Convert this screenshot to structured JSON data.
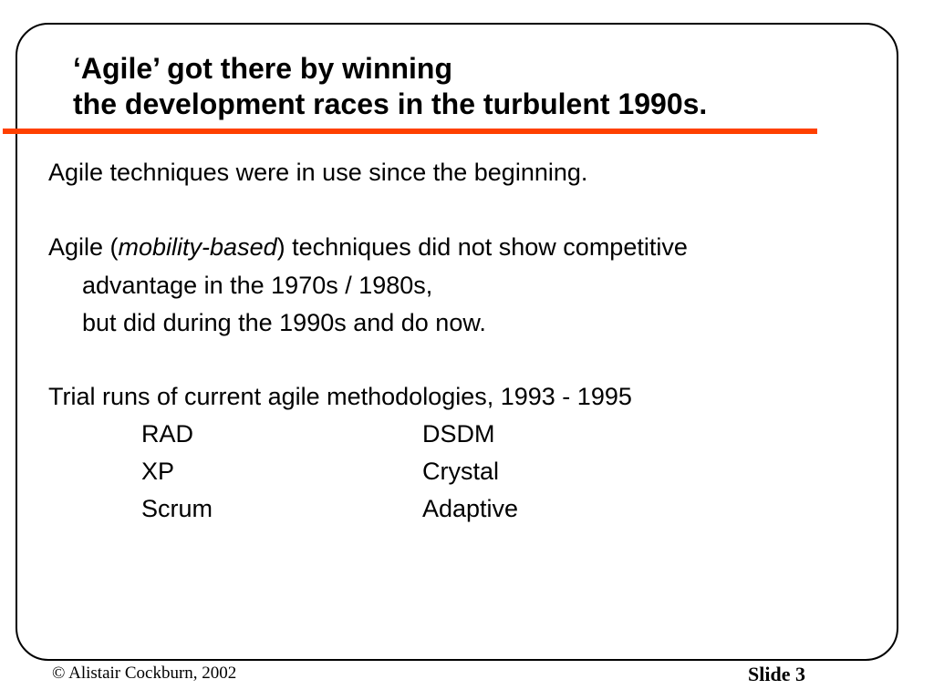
{
  "slide": {
    "title_line1": "‘Agile’ got there by winning",
    "title_line2": "the development races in the turbulent 1990s.",
    "colors": {
      "accent_line": "#ff4000",
      "frame": "#000000",
      "text": "#000000"
    },
    "body": {
      "para1": "Agile techniques were in use since the beginning.",
      "para2_prefix": "Agile (",
      "para2_italic": "mobility-based",
      "para2_suffix": ") techniques did not show competitive",
      "para2_line2": "advantage in the 1970s / 1980s,",
      "para2_line3": "but did during the 1990s and do now.",
      "para3": "Trial runs of current agile methodologies, 1993 - 1995",
      "methodologies": [
        {
          "left": "RAD",
          "right": "DSDM"
        },
        {
          "left": "XP",
          "right": "Crystal"
        },
        {
          "left": "Scrum",
          "right": "Adaptive"
        }
      ]
    },
    "footer": {
      "copyright": "© Alistair Cockburn, 2002",
      "slide_label": "Slide 3"
    }
  }
}
